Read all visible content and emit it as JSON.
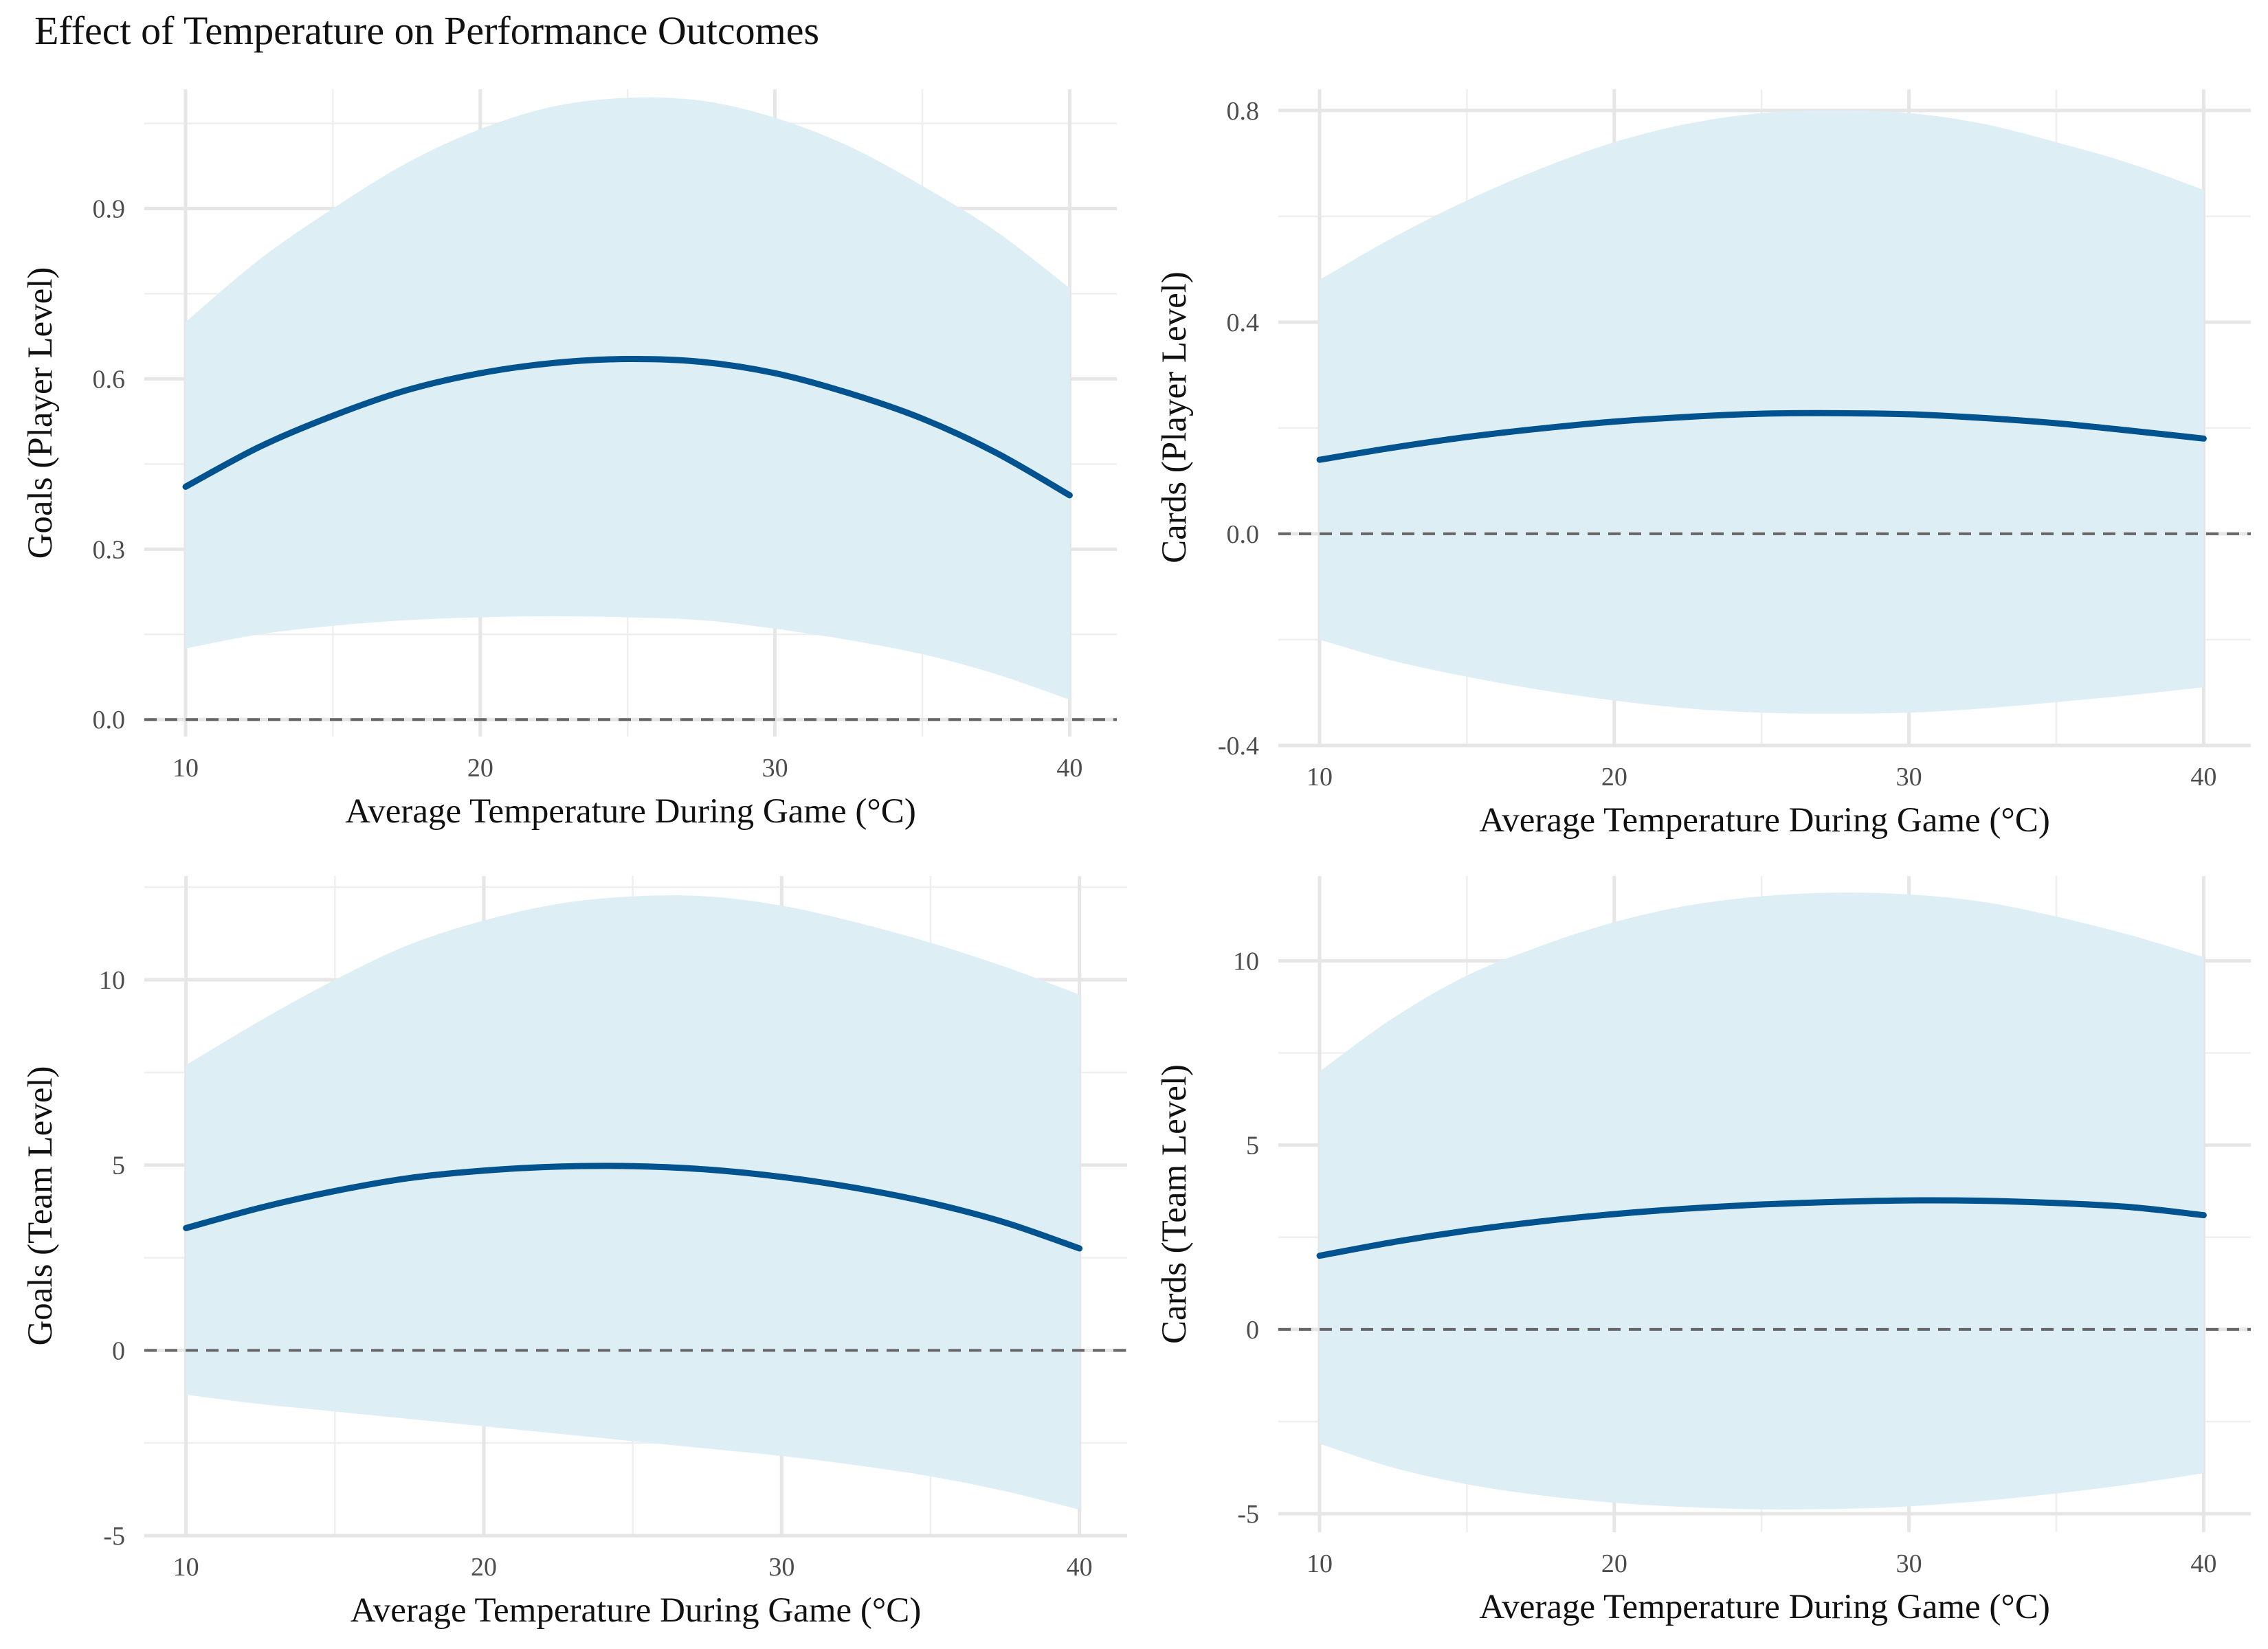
{
  "figure": {
    "title": "Effect of Temperature on Performance Outcomes"
  },
  "colors": {
    "band": "#ddeef5",
    "line": "#00538f",
    "zero_line": "#666666",
    "grid": "#e6e6e6"
  },
  "chart_data": [
    {
      "type": "line",
      "panel": "top-left",
      "title": "",
      "xlabel": "Average Temperature During Game (°C)",
      "ylabel": "Goals (Player Level)",
      "xlim": [
        8.6,
        41.6
      ],
      "ylim": [
        -0.03,
        1.11
      ],
      "xticks": [
        10,
        20,
        30,
        40
      ],
      "xtick_labels": [
        "10",
        "20",
        "30",
        "40"
      ],
      "yticks": [
        0.0,
        0.3,
        0.6,
        0.9
      ],
      "ytick_labels": [
        "0.0",
        "0.3",
        "0.6",
        "0.9"
      ],
      "grid": true,
      "reference_line_y": 0,
      "series": [
        {
          "role": "estimate",
          "x": [
            10,
            12.5,
            15,
            17.5,
            20,
            22.5,
            25,
            27.5,
            30,
            32.5,
            35,
            37.5,
            40
          ],
          "y": [
            0.41,
            0.48,
            0.535,
            0.58,
            0.61,
            0.628,
            0.635,
            0.63,
            0.61,
            0.575,
            0.53,
            0.47,
            0.395
          ]
        },
        {
          "role": "ci_upper",
          "x": [
            10,
            12.5,
            15,
            17.5,
            20,
            22.5,
            25,
            27.5,
            30,
            32.5,
            35,
            37.5,
            40
          ],
          "y": [
            0.7,
            0.81,
            0.9,
            0.98,
            1.04,
            1.08,
            1.095,
            1.09,
            1.06,
            1.01,
            0.94,
            0.86,
            0.76
          ]
        },
        {
          "role": "ci_lower",
          "x": [
            10,
            12.5,
            15,
            17.5,
            20,
            22.5,
            25,
            27.5,
            30,
            32.5,
            35,
            37.5,
            40
          ],
          "y": [
            0.125,
            0.15,
            0.165,
            0.175,
            0.18,
            0.182,
            0.18,
            0.175,
            0.16,
            0.14,
            0.115,
            0.08,
            0.035
          ]
        }
      ]
    },
    {
      "type": "line",
      "panel": "top-right",
      "title": "",
      "xlabel": "Average Temperature During Game (°C)",
      "ylabel": "Cards (Player Level)",
      "xlim": [
        8.6,
        41.6
      ],
      "ylim": [
        -0.4,
        0.84
      ],
      "xticks": [
        10,
        20,
        30,
        40
      ],
      "xtick_labels": [
        "10",
        "20",
        "30",
        "40"
      ],
      "yticks": [
        -0.4,
        0.0,
        0.4,
        0.8
      ],
      "ytick_labels": [
        "-0.4",
        "0.0",
        "0.4",
        "0.8"
      ],
      "grid": true,
      "reference_line_y": 0,
      "series": [
        {
          "role": "estimate",
          "x": [
            10,
            12.5,
            15,
            17.5,
            20,
            22.5,
            25,
            27.5,
            30,
            32.5,
            35,
            37.5,
            40
          ],
          "y": [
            0.14,
            0.163,
            0.183,
            0.199,
            0.212,
            0.221,
            0.227,
            0.228,
            0.226,
            0.219,
            0.209,
            0.195,
            0.18
          ]
        },
        {
          "role": "ci_upper",
          "x": [
            10,
            12.5,
            15,
            17.5,
            20,
            22.5,
            25,
            27.5,
            30,
            32.5,
            35,
            37.5,
            40
          ],
          "y": [
            0.48,
            0.56,
            0.63,
            0.69,
            0.74,
            0.775,
            0.795,
            0.8,
            0.795,
            0.775,
            0.74,
            0.7,
            0.65
          ]
        },
        {
          "role": "ci_lower",
          "x": [
            10,
            12.5,
            15,
            17.5,
            20,
            22.5,
            25,
            27.5,
            30,
            32.5,
            35,
            37.5,
            40
          ],
          "y": [
            -0.2,
            -0.24,
            -0.27,
            -0.295,
            -0.315,
            -0.33,
            -0.338,
            -0.34,
            -0.338,
            -0.33,
            -0.318,
            -0.305,
            -0.29
          ]
        }
      ]
    },
    {
      "type": "line",
      "panel": "bottom-left",
      "title": "",
      "xlabel": "Average Temperature During Game (°C)",
      "ylabel": "Goals (Team Level)",
      "xlim": [
        8.6,
        41.6
      ],
      "ylim": [
        -5.0,
        12.8
      ],
      "xticks": [
        10,
        20,
        30,
        40
      ],
      "xtick_labels": [
        "10",
        "20",
        "30",
        "40"
      ],
      "yticks": [
        -5,
        0,
        5,
        10
      ],
      "ytick_labels": [
        "-5",
        "0",
        "5",
        "10"
      ],
      "grid": true,
      "reference_line_y": 0,
      "series": [
        {
          "role": "estimate",
          "x": [
            10,
            12.5,
            15,
            17.5,
            20,
            22.5,
            25,
            27.5,
            30,
            32.5,
            35,
            37.5,
            40
          ],
          "y": [
            3.3,
            3.85,
            4.3,
            4.65,
            4.85,
            4.96,
            4.97,
            4.88,
            4.68,
            4.38,
            3.98,
            3.45,
            2.75
          ]
        },
        {
          "role": "ci_upper",
          "x": [
            10,
            12.5,
            15,
            17.5,
            20,
            22.5,
            25,
            27.5,
            30,
            32.5,
            35,
            37.5,
            40
          ],
          "y": [
            7.7,
            8.9,
            10.0,
            10.95,
            11.6,
            12.05,
            12.25,
            12.25,
            12.0,
            11.55,
            11.0,
            10.35,
            9.6
          ]
        },
        {
          "role": "ci_lower",
          "x": [
            10,
            12.5,
            15,
            17.5,
            20,
            22.5,
            25,
            27.5,
            30,
            32.5,
            35,
            37.5,
            40
          ],
          "y": [
            -1.2,
            -1.45,
            -1.65,
            -1.85,
            -2.05,
            -2.25,
            -2.45,
            -2.65,
            -2.85,
            -3.1,
            -3.4,
            -3.8,
            -4.3
          ]
        }
      ]
    },
    {
      "type": "line",
      "panel": "bottom-right",
      "title": "",
      "xlabel": "Average Temperature During Game (°C)",
      "ylabel": "Cards (Team Level)",
      "xlim": [
        8.6,
        41.6
      ],
      "ylim": [
        -5.5,
        12.3
      ],
      "xticks": [
        10,
        20,
        30,
        40
      ],
      "xtick_labels": [
        "10",
        "20",
        "30",
        "40"
      ],
      "yticks": [
        -5,
        0,
        5,
        10
      ],
      "ytick_labels": [
        "-5",
        "0",
        "5",
        "10"
      ],
      "grid": true,
      "reference_line_y": 0,
      "series": [
        {
          "role": "estimate",
          "x": [
            10,
            12.5,
            15,
            17.5,
            20,
            22.5,
            25,
            27.5,
            30,
            32.5,
            35,
            37.5,
            40
          ],
          "y": [
            2.0,
            2.37,
            2.68,
            2.93,
            3.13,
            3.28,
            3.39,
            3.46,
            3.5,
            3.49,
            3.43,
            3.32,
            3.1
          ]
        },
        {
          "role": "ci_upper",
          "x": [
            10,
            12.5,
            15,
            17.5,
            20,
            22.5,
            25,
            27.5,
            30,
            32.5,
            35,
            37.5,
            40
          ],
          "y": [
            7.0,
            8.45,
            9.6,
            10.4,
            11.05,
            11.5,
            11.75,
            11.85,
            11.8,
            11.6,
            11.2,
            10.7,
            10.1
          ]
        },
        {
          "role": "ci_lower",
          "x": [
            10,
            12.5,
            15,
            17.5,
            20,
            22.5,
            25,
            27.5,
            30,
            32.5,
            35,
            37.5,
            40
          ],
          "y": [
            -3.1,
            -3.75,
            -4.2,
            -4.5,
            -4.7,
            -4.82,
            -4.88,
            -4.87,
            -4.8,
            -4.65,
            -4.45,
            -4.2,
            -3.9
          ]
        }
      ]
    }
  ]
}
